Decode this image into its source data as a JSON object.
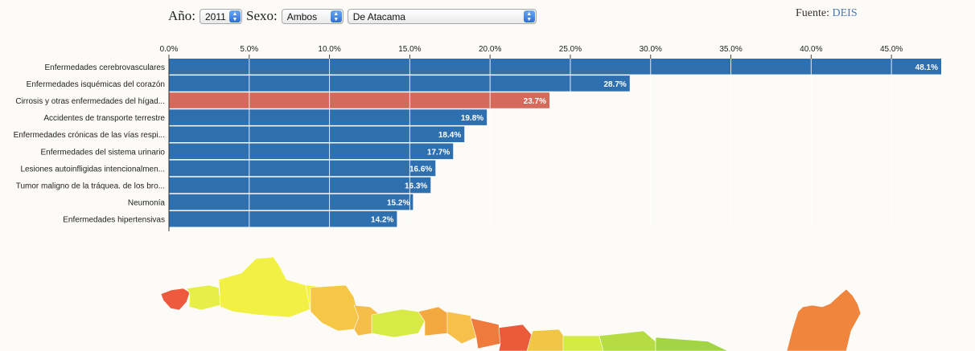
{
  "controls": {
    "year_label": "Año:",
    "year_value": "2011",
    "sex_label": "Sexo:",
    "sex_value": "Ambos",
    "region_value": "De Atacama"
  },
  "source": {
    "label": "Fuente:",
    "link": "DEIS"
  },
  "colors": {
    "bar": "#2e6fb0",
    "highlight": "#d56a5c",
    "background": "#fcfbf8"
  },
  "chart_data": {
    "type": "bar",
    "orientation": "horizontal",
    "categories": [
      "Enfermedades cerebrovasculares",
      "Enfermedades isquémicas del corazón",
      "Cirrosis y otras enfermedades del hígad...",
      "Accidentes de transporte terrestre",
      "Enfermedades crónicas de las vías respi...",
      "Enfermedades del sistema urinario",
      "Lesiones autoinfligidas intencionalmen...",
      "Tumor maligno de la tráquea. de los bro...",
      "Neumonía",
      "Enfermedades hipertensivas"
    ],
    "values": [
      48.1,
      28.7,
      23.7,
      19.8,
      18.4,
      17.7,
      16.6,
      16.3,
      15.2,
      14.2
    ],
    "value_labels": [
      "48.1%",
      "28.7%",
      "23.7%",
      "19.8%",
      "18.4%",
      "17.7%",
      "16.6%",
      "16.3%",
      "15.2%",
      "14.2%"
    ],
    "highlight_index": 2,
    "xlim": [
      0,
      48.1
    ],
    "xticks": [
      0,
      5,
      10,
      15,
      20,
      25,
      30,
      35,
      40,
      45
    ],
    "xtick_labels": [
      "0.0%",
      "5.0%",
      "10.0%",
      "15.0%",
      "20.0%",
      "25.0%",
      "30.0%",
      "35.0%",
      "40.0%",
      "45.0%"
    ],
    "x_axis_position": "top",
    "grid": true
  },
  "map": {
    "region_colors": [
      "#ee5a3e",
      "#e8ee48",
      "#f2ef45",
      "#f4f040",
      "#f6c647",
      "#f7bd4a",
      "#d8ea45",
      "#f3a93f",
      "#f7c04a",
      "#f07a3c",
      "#ea5a3b",
      "#f1c645",
      "#d3ec45",
      "#b5dc42",
      "#a3d444",
      "#f0863e"
    ]
  }
}
